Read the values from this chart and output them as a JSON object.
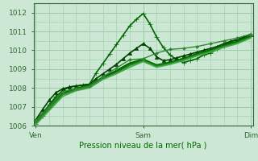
{
  "title": "",
  "xlabel": "Pression niveau de la mer( hPa )",
  "bg_color": "#cce8d4",
  "grid_color": "#99ccaa",
  "xtick_labels": [
    "Ven",
    "Sam",
    "Dim"
  ],
  "xtick_positions": [
    0,
    48,
    96
  ],
  "ylim": [
    1006.0,
    1012.5
  ],
  "yticks": [
    1006,
    1007,
    1008,
    1009,
    1010,
    1011,
    1012
  ],
  "xlim": [
    -1,
    97
  ],
  "series": [
    {
      "x": [
        0,
        3,
        6,
        9,
        12,
        15,
        18,
        21,
        24,
        27,
        30,
        33,
        36,
        39,
        42,
        45,
        48,
        51,
        54,
        57,
        60,
        63,
        66,
        69,
        72,
        75,
        78,
        81,
        84,
        87,
        90,
        93,
        96
      ],
      "y": [
        1006.1,
        1006.5,
        1007.1,
        1007.55,
        1007.85,
        1008.05,
        1008.1,
        1008.15,
        1008.2,
        1008.8,
        1009.3,
        1009.8,
        1010.3,
        1010.8,
        1011.3,
        1011.65,
        1011.95,
        1011.4,
        1010.7,
        1010.15,
        1009.75,
        1009.5,
        1009.35,
        1009.45,
        1009.55,
        1009.75,
        1009.85,
        1010.05,
        1010.25,
        1010.45,
        1010.55,
        1010.7,
        1010.85
      ],
      "marker": "+",
      "color": "#006600",
      "lw": 1.2,
      "ms": 4
    },
    {
      "x": [
        0,
        3,
        6,
        9,
        12,
        15,
        18,
        21,
        24,
        27,
        30,
        33,
        36,
        39,
        42,
        45,
        48,
        51,
        54,
        57,
        60,
        63,
        66,
        69,
        72,
        75,
        78,
        81,
        84,
        87,
        90,
        93,
        96
      ],
      "y": [
        1006.3,
        1006.85,
        1007.35,
        1007.75,
        1007.95,
        1008.05,
        1008.1,
        1008.15,
        1008.2,
        1008.5,
        1008.75,
        1009.0,
        1009.25,
        1009.55,
        1009.85,
        1010.1,
        1010.35,
        1010.1,
        1009.65,
        1009.45,
        1009.5,
        1009.6,
        1009.7,
        1009.8,
        1009.9,
        1010.0,
        1010.1,
        1010.2,
        1010.35,
        1010.47,
        1010.57,
        1010.7,
        1010.85
      ],
      "marker": "^",
      "color": "#004400",
      "lw": 1.2,
      "ms": 3
    },
    {
      "x": [
        0,
        6,
        12,
        18,
        24,
        30,
        36,
        42,
        48,
        54,
        60,
        66,
        72,
        78,
        84,
        90,
        96
      ],
      "y": [
        1006.2,
        1007.05,
        1007.75,
        1007.95,
        1008.15,
        1008.55,
        1008.9,
        1009.3,
        1009.5,
        1009.2,
        1009.35,
        1009.55,
        1009.8,
        1010.0,
        1010.25,
        1010.45,
        1010.75
      ],
      "marker": null,
      "color": "#006600",
      "lw": 2.0,
      "ms": 0
    },
    {
      "x": [
        0,
        6,
        12,
        18,
        24,
        30,
        36,
        42,
        48,
        54,
        60,
        66,
        72,
        78,
        84,
        90,
        96
      ],
      "y": [
        1006.15,
        1006.9,
        1007.65,
        1007.9,
        1008.05,
        1008.5,
        1008.8,
        1009.2,
        1009.45,
        1009.15,
        1009.3,
        1009.5,
        1009.75,
        1009.95,
        1010.2,
        1010.4,
        1010.7
      ],
      "marker": null,
      "color": "#228822",
      "lw": 1.5,
      "ms": 0
    },
    {
      "x": [
        0,
        6,
        12,
        18,
        24,
        30,
        36,
        42,
        48,
        54,
        60,
        66,
        72,
        78,
        84,
        90,
        96
      ],
      "y": [
        1006.05,
        1006.8,
        1007.55,
        1007.85,
        1008.0,
        1008.45,
        1008.75,
        1009.1,
        1009.4,
        1009.1,
        1009.25,
        1009.45,
        1009.7,
        1009.9,
        1010.15,
        1010.35,
        1010.65
      ],
      "marker": null,
      "color": "#44aa44",
      "lw": 1.2,
      "ms": 0
    },
    {
      "x": [
        0,
        6,
        12,
        18,
        24,
        30,
        36,
        42,
        48,
        54,
        60,
        66,
        72,
        78,
        84,
        90,
        96
      ],
      "y": [
        1006.25,
        1007.0,
        1007.8,
        1007.95,
        1008.1,
        1008.6,
        1009.05,
        1009.5,
        1009.55,
        1009.85,
        1010.05,
        1010.1,
        1010.2,
        1010.35,
        1010.5,
        1010.65,
        1010.85
      ],
      "marker": "D",
      "color": "#338833",
      "lw": 1.0,
      "ms": 2
    }
  ]
}
